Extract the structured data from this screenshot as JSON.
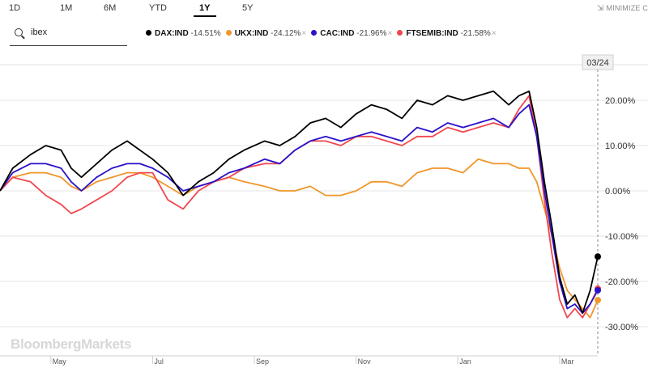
{
  "range_tabs": [
    {
      "label": "1D",
      "active": false
    },
    {
      "label": "1M",
      "active": false
    },
    {
      "label": "6M",
      "active": false
    },
    {
      "label": "YTD",
      "active": false
    },
    {
      "label": "1Y",
      "active": true
    },
    {
      "label": "5Y",
      "active": false
    }
  ],
  "minimize_label": "MINIMIZE C",
  "minimize_icon": "arrows-in-icon",
  "search": {
    "value": "ibex",
    "icon": "search-icon"
  },
  "legend": [
    {
      "name": "DAX:IND",
      "change": "-14.51%",
      "color": "#000000"
    },
    {
      "name": "UKX:IND",
      "change": "-24.12%",
      "color": "#f0962a"
    },
    {
      "name": "CAC:IND",
      "change": "-21.96%",
      "color": "#2a12c8"
    },
    {
      "name": "FTSEMIB:IND",
      "change": "-21.58%",
      "color": "#f0484e"
    }
  ],
  "remove_glyph": "×",
  "watermark": "BloombergMarkets",
  "chart_data": {
    "type": "line",
    "crosshair_label": "03/24",
    "y_ticks": [
      "20.00%",
      "10.00%",
      "0.00%",
      "-10.00%",
      "-20.00%",
      "-30.00%"
    ],
    "y_tick_values": [
      20,
      10,
      0,
      -10,
      -20,
      -30
    ],
    "x_ticks": [
      "May",
      "Jul",
      "Sep",
      "Nov",
      "Jan",
      "Mar"
    ],
    "x_tick_positions": [
      1.0,
      3.0,
      5.0,
      7.0,
      9.0,
      11.0
    ],
    "ylim": [
      -32,
      28
    ],
    "xlim": [
      0,
      11.75
    ],
    "grid": "horizontal",
    "series": [
      {
        "name": "DAX:IND",
        "x": [
          0,
          0.25,
          0.6,
          0.9,
          1.2,
          1.4,
          1.6,
          1.9,
          2.2,
          2.5,
          2.75,
          3.0,
          3.3,
          3.6,
          3.9,
          4.2,
          4.5,
          4.8,
          5.2,
          5.5,
          5.8,
          6.1,
          6.4,
          6.7,
          7.0,
          7.3,
          7.6,
          7.9,
          8.2,
          8.5,
          8.8,
          9.1,
          9.4,
          9.7,
          10.0,
          10.2,
          10.4,
          10.55,
          10.7,
          10.85,
          11.0,
          11.15,
          11.3,
          11.45,
          11.6,
          11.75
        ],
        "y": [
          0,
          5,
          8,
          10,
          9,
          5,
          3,
          6,
          9,
          11,
          9,
          7,
          4,
          -1,
          2,
          4,
          7,
          9,
          11,
          10,
          12,
          15,
          16,
          14,
          17,
          19,
          18,
          16,
          20,
          19,
          21,
          20,
          21,
          22,
          19,
          21,
          22,
          14,
          2,
          -8,
          -19,
          -25,
          -23,
          -27,
          -22,
          -14.51
        ]
      },
      {
        "name": "UKX:IND",
        "x": [
          0,
          0.25,
          0.6,
          0.9,
          1.2,
          1.4,
          1.6,
          1.9,
          2.2,
          2.5,
          2.75,
          3.0,
          3.3,
          3.6,
          3.9,
          4.2,
          4.5,
          4.8,
          5.2,
          5.5,
          5.8,
          6.1,
          6.4,
          6.7,
          7.0,
          7.3,
          7.6,
          7.9,
          8.2,
          8.5,
          8.8,
          9.1,
          9.4,
          9.7,
          10.0,
          10.2,
          10.4,
          10.55,
          10.7,
          10.85,
          11.0,
          11.15,
          11.3,
          11.45,
          11.6,
          11.75
        ],
        "y": [
          0,
          3,
          4,
          4,
          3,
          1,
          0,
          2,
          3,
          4,
          4,
          3,
          1,
          -1,
          1,
          2,
          3,
          2,
          1,
          0,
          0,
          1,
          -1,
          -1,
          0,
          2,
          2,
          1,
          4,
          5,
          5,
          4,
          7,
          6,
          6,
          5,
          5,
          2,
          -4,
          -10,
          -17,
          -22,
          -24,
          -26,
          -28,
          -24.12
        ]
      },
      {
        "name": "CAC:IND",
        "x": [
          0,
          0.25,
          0.6,
          0.9,
          1.2,
          1.4,
          1.6,
          1.9,
          2.2,
          2.5,
          2.75,
          3.0,
          3.3,
          3.6,
          3.9,
          4.2,
          4.5,
          4.8,
          5.2,
          5.5,
          5.8,
          6.1,
          6.4,
          6.7,
          7.0,
          7.3,
          7.6,
          7.9,
          8.2,
          8.5,
          8.8,
          9.1,
          9.4,
          9.7,
          10.0,
          10.2,
          10.4,
          10.55,
          10.7,
          10.85,
          11.0,
          11.15,
          11.3,
          11.45,
          11.6,
          11.75
        ],
        "y": [
          0,
          4,
          6,
          6,
          5,
          2,
          0,
          3,
          5,
          6,
          6,
          5,
          3,
          0,
          1,
          2,
          4,
          5,
          7,
          6,
          9,
          11,
          12,
          11,
          12,
          13,
          12,
          11,
          14,
          13,
          15,
          14,
          15,
          16,
          14,
          17,
          19,
          12,
          0,
          -10,
          -20,
          -26,
          -25,
          -27,
          -25,
          -21.96
        ]
      },
      {
        "name": "FTSEMIB:IND",
        "x": [
          0,
          0.25,
          0.6,
          0.9,
          1.2,
          1.4,
          1.6,
          1.9,
          2.2,
          2.5,
          2.75,
          3.0,
          3.3,
          3.6,
          3.9,
          4.2,
          4.5,
          4.8,
          5.2,
          5.5,
          5.8,
          6.1,
          6.4,
          6.7,
          7.0,
          7.3,
          7.6,
          7.9,
          8.2,
          8.5,
          8.8,
          9.1,
          9.4,
          9.7,
          10.0,
          10.2,
          10.4,
          10.55,
          10.7,
          10.85,
          11.0,
          11.15,
          11.3,
          11.45,
          11.6,
          11.75
        ],
        "y": [
          0,
          3,
          2,
          -1,
          -3,
          -5,
          -4,
          -2,
          0,
          3,
          4,
          4,
          -2,
          -4,
          0,
          2,
          3,
          5,
          6,
          6,
          9,
          11,
          11,
          10,
          12,
          12,
          11,
          10,
          12,
          12,
          14,
          13,
          14,
          15,
          14,
          18,
          21,
          12,
          -2,
          -14,
          -24,
          -28,
          -26,
          -28,
          -25,
          -21.58
        ]
      }
    ]
  }
}
